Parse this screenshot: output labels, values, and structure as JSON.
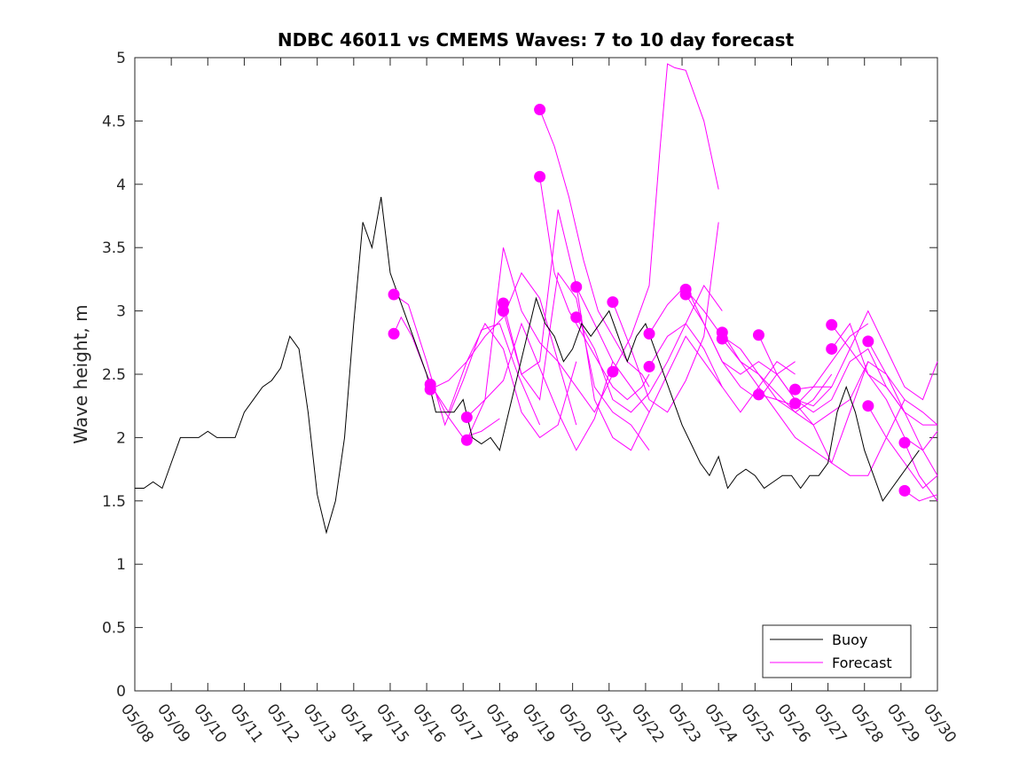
{
  "chart_data": {
    "type": "line",
    "title": "NDBC 46011 vs CMEMS Waves: 7 to 10 day forecast",
    "xlabel": "",
    "ylabel": "Wave height, m",
    "x_tick_labels": [
      "05/08",
      "05/09",
      "05/10",
      "05/11",
      "05/12",
      "05/13",
      "05/14",
      "05/15",
      "05/16",
      "05/17",
      "05/18",
      "05/19",
      "05/20",
      "05/21",
      "05/22",
      "05/23",
      "05/24",
      "05/25",
      "05/26",
      "05/27",
      "05/28",
      "05/29",
      "05/30"
    ],
    "y_ticks": [
      0,
      0.5,
      1,
      1.5,
      2,
      2.5,
      3,
      3.5,
      4,
      4.5,
      5
    ],
    "y_tick_labels": [
      "0",
      "0.5",
      "1",
      "1.5",
      "2",
      "2.5",
      "3",
      "3.5",
      "4",
      "4.5",
      "5"
    ],
    "xlim_days": [
      0,
      22
    ],
    "ylim": [
      0,
      5
    ],
    "grid": false,
    "legend": {
      "position": "bottom-right",
      "entries": [
        "Buoy",
        "Forecast"
      ]
    },
    "colors": {
      "buoy": "#000000",
      "forecast": "#ff00ff",
      "axes": "#262626"
    },
    "series": [
      {
        "name": "Buoy",
        "x": [
          0,
          0.25,
          0.5,
          0.75,
          1,
          1.25,
          1.5,
          1.75,
          2,
          2.25,
          2.5,
          2.75,
          3,
          3.25,
          3.5,
          3.75,
          4,
          4.25,
          4.5,
          4.75,
          5,
          5.25,
          5.5,
          5.75,
          6,
          6.25,
          6.5,
          6.75,
          7,
          7.25,
          7.5,
          7.75,
          8,
          8.25,
          8.5,
          8.75,
          9,
          9.25,
          9.5,
          9.75,
          10,
          10.25,
          10.5,
          10.75,
          11,
          11.25,
          11.5,
          11.75,
          12,
          12.25,
          12.5,
          12.75,
          13,
          13.25,
          13.5,
          13.75,
          14,
          14.25,
          14.5,
          14.75,
          15,
          15.25,
          15.5,
          15.75,
          16,
          16.25,
          16.5,
          16.75,
          17,
          17.25,
          17.5,
          17.75,
          18,
          18.25,
          18.5,
          18.75,
          19,
          19.25,
          19.5,
          19.75,
          20,
          20.25,
          20.5,
          20.75,
          21,
          21.25,
          21.5,
          21.75,
          22
        ],
        "y": [
          1.6,
          1.6,
          1.65,
          1.6,
          1.8,
          2.0,
          2.0,
          2.0,
          2.05,
          2.0,
          2.0,
          2.0,
          2.2,
          2.3,
          2.4,
          2.45,
          2.55,
          2.8,
          2.7,
          2.2,
          1.55,
          1.25,
          1.5,
          2.0,
          2.9,
          3.7,
          3.5,
          3.9,
          3.3,
          3.1,
          2.9,
          2.7,
          2.5,
          2.2,
          2.2,
          2.2,
          2.3,
          2.0,
          1.95,
          2.0,
          1.9,
          2.2,
          2.5,
          2.8,
          3.1,
          2.9,
          2.8,
          2.6,
          2.7,
          2.9,
          2.8,
          2.9,
          3.0,
          2.8,
          2.6,
          2.8,
          2.9,
          2.7,
          2.5,
          2.3,
          2.1,
          1.95,
          1.8,
          1.7,
          1.85,
          1.6,
          1.7,
          1.75,
          1.7,
          1.6,
          1.65,
          1.7,
          1.7,
          1.6,
          1.7,
          1.7,
          1.8,
          2.2,
          2.4,
          2.2,
          1.9,
          1.7,
          1.5,
          1.6,
          1.7,
          1.8,
          1.9,
          null,
          null
        ]
      },
      {
        "name": "Forecast",
        "x": [
          7.1,
          7.3,
          7.6,
          8.0,
          8.5,
          9.0,
          9.5,
          10.0
        ],
        "y": [
          2.82,
          2.95,
          2.8,
          2.5,
          2.2,
          2.0,
          2.05,
          2.15
        ]
      },
      {
        "name": "Forecast",
        "x": [
          7.1,
          7.5,
          8.0,
          8.5,
          9.0,
          9.5,
          10.0,
          10.5,
          11.1
        ],
        "y": [
          3.13,
          3.05,
          2.6,
          2.1,
          2.45,
          2.85,
          2.9,
          2.5,
          2.1
        ]
      },
      {
        "name": "Forecast",
        "x": [
          8.1,
          8.6,
          9.1,
          9.6,
          10.1,
          10.6,
          11.1,
          11.6,
          12.1
        ],
        "y": [
          2.42,
          2.2,
          2.6,
          2.9,
          2.7,
          2.2,
          2.0,
          2.1,
          2.6
        ]
      },
      {
        "name": "Forecast",
        "x": [
          8.1,
          8.6,
          9.1,
          9.6,
          10.1,
          10.6,
          11.1,
          11.6,
          12.1
        ],
        "y": [
          2.38,
          2.45,
          2.6,
          2.8,
          2.95,
          3.3,
          3.1,
          2.6,
          2.1
        ]
      },
      {
        "name": "Forecast",
        "x": [
          9.1,
          9.6,
          10.1,
          10.6,
          11.1,
          11.6,
          12.1,
          12.6,
          13.1
        ],
        "y": [
          2.16,
          2.3,
          2.45,
          2.9,
          2.55,
          2.2,
          1.9,
          2.15,
          2.6
        ]
      },
      {
        "name": "Forecast",
        "x": [
          9.1,
          9.6,
          10.1,
          10.6,
          11.1,
          11.6,
          12.1,
          12.6,
          13.1
        ],
        "y": [
          1.98,
          2.3,
          3.5,
          3.0,
          2.75,
          2.6,
          2.4,
          2.2,
          2.5
        ]
      },
      {
        "name": "Forecast",
        "x": [
          10.1,
          10.6,
          11.1,
          11.6,
          12.1,
          12.6,
          13.1,
          13.6,
          14.1
        ],
        "y": [
          3.0,
          2.5,
          2.3,
          3.3,
          3.1,
          2.4,
          2.2,
          2.1,
          1.9
        ]
      },
      {
        "name": "Forecast",
        "x": [
          10.1,
          10.6,
          11.1,
          11.6,
          12.1,
          12.6,
          13.1,
          13.6,
          14.1
        ],
        "y": [
          3.06,
          2.5,
          2.6,
          3.8,
          3.2,
          2.3,
          2.0,
          1.9,
          2.2
        ]
      },
      {
        "name": "Forecast",
        "x": [
          11.1,
          11.5,
          11.9,
          12.3,
          12.7,
          13.1,
          13.5,
          13.9,
          14.1
        ],
        "y": [
          4.59,
          4.3,
          3.9,
          3.4,
          3.0,
          2.8,
          2.6,
          2.5,
          2.4
        ]
      },
      {
        "name": "Forecast",
        "x": [
          11.1,
          11.5,
          11.9,
          12.3,
          12.7,
          13.1,
          13.5,
          13.9,
          14.1
        ],
        "y": [
          4.06,
          3.3,
          3.0,
          2.8,
          2.6,
          2.4,
          2.3,
          2.4,
          2.5
        ]
      },
      {
        "name": "Forecast",
        "x": [
          12.1,
          12.6,
          13.1,
          13.6,
          14.1,
          14.6,
          15.1,
          15.6,
          16.1
        ],
        "y": [
          3.19,
          2.9,
          2.6,
          2.4,
          2.2,
          2.5,
          2.8,
          2.6,
          2.4
        ]
      },
      {
        "name": "Forecast",
        "x": [
          12.1,
          12.6,
          13.1,
          13.6,
          14.1,
          14.6,
          15.1,
          15.6,
          16.1
        ],
        "y": [
          2.95,
          2.7,
          2.3,
          2.2,
          2.35,
          2.6,
          2.9,
          3.2,
          3.0
        ]
      },
      {
        "name": "Forecast",
        "x": [
          13.1,
          13.6,
          14.1,
          14.4,
          14.6,
          14.8,
          15.1,
          15.6,
          16.0
        ],
        "y": [
          2.52,
          2.8,
          3.2,
          4.3,
          4.95,
          4.92,
          4.9,
          4.5,
          3.96
        ]
      },
      {
        "name": "Forecast",
        "x": [
          13.1,
          13.6,
          14.1,
          14.6,
          15.1,
          15.6,
          16.0
        ],
        "y": [
          3.07,
          2.7,
          2.3,
          2.2,
          2.45,
          2.8,
          3.7
        ]
      },
      {
        "name": "Forecast",
        "x": [
          14.1,
          14.6,
          15.1,
          15.6,
          16.1,
          16.6,
          17.1,
          17.6,
          18.1
        ],
        "y": [
          2.82,
          3.05,
          3.2,
          2.9,
          2.6,
          2.4,
          2.3,
          2.5,
          2.6
        ]
      },
      {
        "name": "Forecast",
        "x": [
          14.1,
          14.6,
          15.1,
          15.6,
          16.1,
          16.6,
          17.1,
          17.6,
          18.1
        ],
        "y": [
          2.56,
          2.8,
          2.9,
          2.7,
          2.4,
          2.2,
          2.4,
          2.6,
          2.5
        ]
      },
      {
        "name": "Forecast",
        "x": [
          15.1,
          15.6,
          16.1,
          16.6,
          17.1,
          17.6,
          18.1,
          18.6,
          19.1
        ],
        "y": [
          3.17,
          3.0,
          2.8,
          2.7,
          2.5,
          2.35,
          2.2,
          2.3,
          2.5
        ]
      },
      {
        "name": "Forecast",
        "x": [
          15.1,
          15.6,
          16.1,
          16.6,
          17.1,
          17.6,
          18.1,
          18.6,
          19.1
        ],
        "y": [
          3.13,
          2.9,
          2.6,
          2.5,
          2.6,
          2.5,
          2.3,
          2.25,
          2.4
        ]
      },
      {
        "name": "Forecast",
        "x": [
          16.1,
          16.6,
          17.1,
          17.6,
          18.1,
          18.6,
          19.1,
          19.6,
          20.1
        ],
        "y": [
          2.83,
          2.6,
          2.4,
          2.2,
          2.0,
          1.9,
          1.8,
          2.2,
          2.6
        ]
      },
      {
        "name": "Forecast",
        "x": [
          16.1,
          16.6,
          17.1,
          17.6,
          18.1,
          18.6,
          19.1,
          19.6,
          20.1
        ],
        "y": [
          2.78,
          2.6,
          2.5,
          2.3,
          2.25,
          2.4,
          2.6,
          2.8,
          2.9
        ]
      },
      {
        "name": "Forecast",
        "x": [
          17.1,
          17.6,
          18.1,
          18.6,
          19.1,
          19.6,
          20.1,
          20.6,
          21.1
        ],
        "y": [
          2.81,
          2.5,
          2.3,
          2.2,
          2.3,
          2.6,
          2.7,
          2.4,
          2.2
        ]
      },
      {
        "name": "Forecast",
        "x": [
          17.1,
          17.6,
          18.1,
          18.6,
          19.1,
          19.6,
          20.1,
          20.6,
          21.1
        ],
        "y": [
          2.34,
          2.3,
          2.2,
          2.1,
          2.2,
          2.3,
          2.6,
          2.5,
          2.3
        ]
      },
      {
        "name": "Forecast",
        "x": [
          18.1,
          18.6,
          19.1,
          19.6,
          20.1,
          20.6,
          21.1,
          21.6,
          22.0
        ],
        "y": [
          2.38,
          2.4,
          2.4,
          2.7,
          3.0,
          2.7,
          2.4,
          2.3,
          2.6
        ]
      },
      {
        "name": "Forecast",
        "x": [
          18.1,
          18.6,
          19.1,
          19.6,
          20.1,
          20.6,
          21.1,
          21.6,
          22.0
        ],
        "y": [
          2.27,
          2.1,
          1.8,
          1.7,
          1.7,
          2.0,
          2.3,
          2.2,
          2.1
        ]
      },
      {
        "name": "Forecast",
        "x": [
          19.1,
          19.6,
          20.1,
          20.6,
          21.1,
          21.6,
          22.0
        ],
        "y": [
          2.89,
          2.7,
          2.5,
          2.3,
          2.0,
          1.9,
          2.05
        ]
      },
      {
        "name": "Forecast",
        "x": [
          19.1,
          19.6,
          20.1,
          20.6,
          21.1,
          21.6,
          22.0
        ],
        "y": [
          2.7,
          2.9,
          2.5,
          2.4,
          2.2,
          2.1,
          2.1
        ]
      },
      {
        "name": "Forecast",
        "x": [
          20.1,
          20.6,
          21.1,
          21.6,
          22.0
        ],
        "y": [
          2.76,
          2.5,
          2.2,
          1.9,
          1.7
        ]
      },
      {
        "name": "Forecast",
        "x": [
          20.1,
          20.6,
          21.1,
          21.6,
          22.0
        ],
        "y": [
          2.25,
          2.0,
          1.8,
          1.6,
          1.7
        ]
      },
      {
        "name": "Forecast",
        "x": [
          21.1,
          21.5,
          22.0
        ],
        "y": [
          1.96,
          1.7,
          1.5
        ]
      },
      {
        "name": "Forecast",
        "x": [
          21.1,
          21.5,
          22.0
        ],
        "y": [
          1.58,
          1.5,
          1.55
        ]
      }
    ]
  }
}
